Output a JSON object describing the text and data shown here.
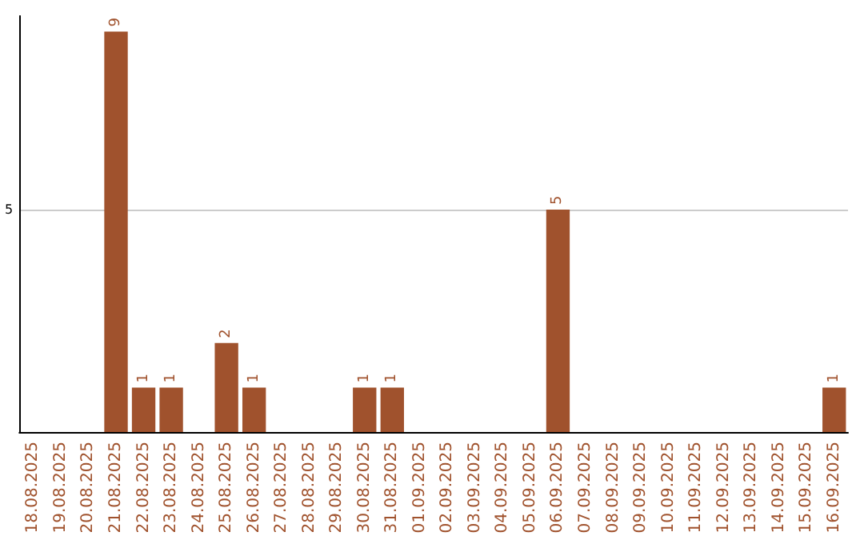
{
  "chart_data": {
    "type": "bar",
    "categories": [
      "18.08.2025",
      "19.08.2025",
      "20.08.2025",
      "21.08.2025",
      "22.08.2025",
      "23.08.2025",
      "24.08.2025",
      "25.08.2025",
      "26.08.2025",
      "27.08.2025",
      "28.08.2025",
      "29.08.2025",
      "30.08.2025",
      "31.08.2025",
      "01.09.2025",
      "02.09.2025",
      "03.09.2025",
      "04.09.2025",
      "05.09.2025",
      "06.09.2025",
      "07.09.2025",
      "08.09.2025",
      "09.09.2025",
      "10.09.2025",
      "11.09.2025",
      "12.09.2025",
      "13.09.2025",
      "14.09.2025",
      "15.09.2025",
      "16.09.2025"
    ],
    "values": [
      0,
      0,
      0,
      9,
      1,
      1,
      0,
      2,
      1,
      0,
      0,
      0,
      1,
      1,
      0,
      0,
      0,
      0,
      0,
      5,
      0,
      0,
      0,
      0,
      0,
      0,
      0,
      0,
      0,
      1
    ],
    "value_labels": [
      null,
      null,
      null,
      "9",
      "1",
      "1",
      null,
      "2",
      "1",
      null,
      null,
      null,
      "1",
      "1",
      null,
      null,
      null,
      null,
      null,
      "5",
      null,
      null,
      null,
      null,
      null,
      null,
      null,
      null,
      null,
      "1"
    ],
    "color": "#a0522d",
    "ylim": [
      0,
      9.35
    ],
    "yticks": [
      5
    ],
    "grid": "y"
  }
}
